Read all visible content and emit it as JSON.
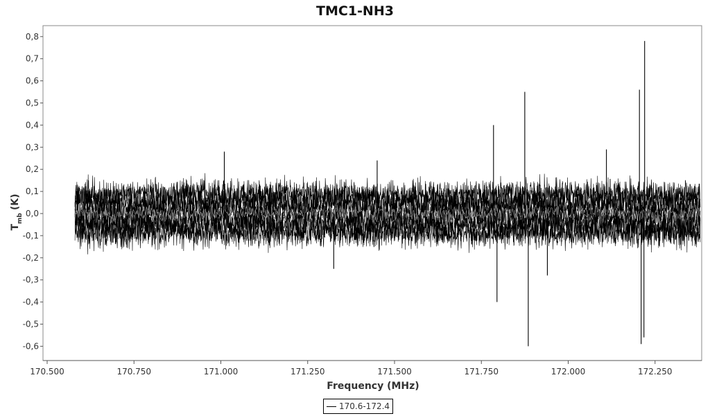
{
  "chart_data": {
    "type": "line",
    "title": "TMC1-NH3",
    "xlabel": "Frequency (MHz)",
    "ylabel_main": "T",
    "ylabel_sub": "mb",
    "ylabel_unit": "(K)",
    "xlim": [
      170.5,
      172.5
    ],
    "ylim": [
      -0.66,
      0.86
    ],
    "x_ticks": [
      {
        "value": 170.5,
        "label": "170.500"
      },
      {
        "value": 170.75,
        "label": "170.750"
      },
      {
        "value": 171.0,
        "label": "171.000"
      },
      {
        "value": 171.25,
        "label": "171.250"
      },
      {
        "value": 171.5,
        "label": "171.500"
      },
      {
        "value": 171.75,
        "label": "171.750"
      },
      {
        "value": 172.0,
        "label": "172.000"
      },
      {
        "value": 172.25,
        "label": "172.250"
      }
    ],
    "y_ticks": [
      {
        "value": 0.8,
        "label": "0,8"
      },
      {
        "value": 0.7,
        "label": "0,7"
      },
      {
        "value": 0.6,
        "label": "0,6"
      },
      {
        "value": 0.5,
        "label": "0,5"
      },
      {
        "value": 0.4,
        "label": "0,4"
      },
      {
        "value": 0.3,
        "label": "0,3"
      },
      {
        "value": 0.2,
        "label": "0,2"
      },
      {
        "value": 0.1,
        "label": "0,1"
      },
      {
        "value": 0.0,
        "label": "0,0"
      },
      {
        "value": -0.1,
        "label": "-0,1"
      },
      {
        "value": -0.2,
        "label": "-0,2"
      },
      {
        "value": -0.3,
        "label": "-0,3"
      },
      {
        "value": -0.4,
        "label": "-0,4"
      },
      {
        "value": -0.5,
        "label": "-0,5"
      },
      {
        "value": -0.6,
        "label": "-0,6"
      }
    ],
    "series": [
      {
        "name": "170.6-172.4",
        "x_range": [
          170.58,
          172.38
        ],
        "noise_band": [
          -0.15,
          0.15
        ],
        "color": "#000000"
      }
    ],
    "spikes": [
      {
        "x": 171.01,
        "y": 0.28
      },
      {
        "x": 171.785,
        "y": 0.4
      },
      {
        "x": 171.795,
        "y": -0.4
      },
      {
        "x": 171.875,
        "y": 0.55
      },
      {
        "x": 171.885,
        "y": -0.6
      },
      {
        "x": 171.94,
        "y": -0.28
      },
      {
        "x": 172.11,
        "y": 0.29
      },
      {
        "x": 172.205,
        "y": 0.56
      },
      {
        "x": 172.21,
        "y": -0.59
      },
      {
        "x": 172.22,
        "y": 0.78
      },
      {
        "x": 172.218,
        "y": -0.56
      },
      {
        "x": 171.325,
        "y": -0.25
      },
      {
        "x": 171.45,
        "y": 0.24
      }
    ],
    "legend": "bottom-center",
    "grid": false
  }
}
